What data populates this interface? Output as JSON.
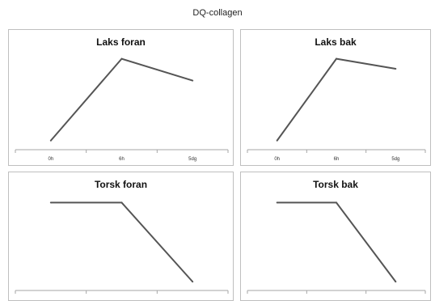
{
  "figure": {
    "title": "DQ-collagen"
  },
  "chart_data": [
    {
      "type": "line",
      "title": "Laks foran",
      "categories": [
        "0h",
        "6h",
        "5dg"
      ],
      "series": [
        {
          "values": [
            1,
            10,
            7.6
          ]
        }
      ],
      "ylim": [
        0,
        10.5
      ],
      "color": "#555555"
    },
    {
      "type": "line",
      "title": "Laks bak",
      "categories": [
        "0h",
        "6h",
        "5dg"
      ],
      "series": [
        {
          "values": [
            1,
            10,
            8.9
          ]
        }
      ],
      "ylim": [
        0,
        10.5
      ],
      "color": "#555555"
    },
    {
      "type": "line",
      "title": "Torsk foran",
      "categories": [
        "",
        "",
        ""
      ],
      "series": [
        {
          "values": [
            10,
            10,
            1
          ]
        }
      ],
      "ylim": [
        0,
        10.5
      ],
      "color": "#555555"
    },
    {
      "type": "line",
      "title": "Torsk bak",
      "categories": [
        "",
        "",
        ""
      ],
      "series": [
        {
          "values": [
            10,
            10,
            1
          ]
        }
      ],
      "ylim": [
        0,
        10.5
      ],
      "color": "#555555"
    }
  ]
}
